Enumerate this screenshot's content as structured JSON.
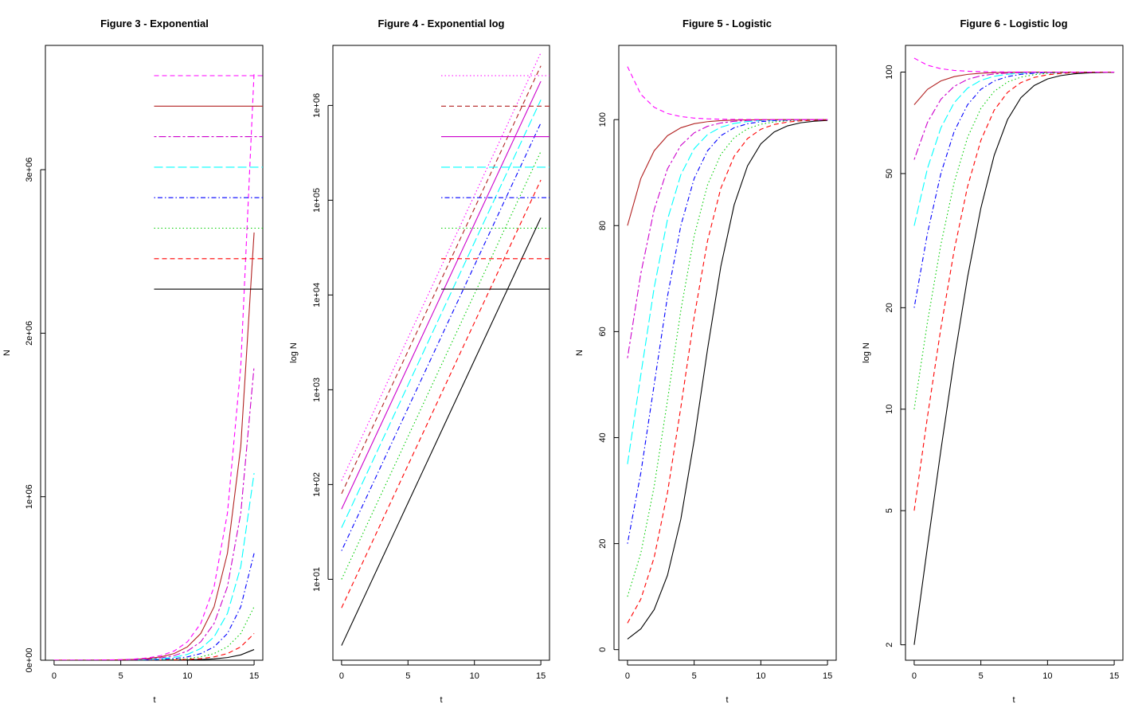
{
  "chart_data": [
    {
      "type": "line",
      "title": "Figure 3 - Exponential",
      "xlabel": "t",
      "ylabel": "N",
      "log_y": false,
      "xlim": [
        0,
        15
      ],
      "ylim": [
        0,
        3760000
      ],
      "xticks": [
        0,
        5,
        10,
        15
      ],
      "xtick_labels": [
        "0",
        "5",
        "10",
        "15"
      ],
      "yticks": [
        0,
        1000000,
        2000000,
        3000000
      ],
      "ytick_labels": [
        "0e+00",
        "1e+06",
        "2e+06",
        "3e+06"
      ],
      "legend": "top-right",
      "legend_x_from": 7.5,
      "series": [
        {
          "r": 0.693,
          "n0": 2,
          "color": "#000000",
          "lty": "solid"
        },
        {
          "r": 0.693,
          "n0": 5,
          "color": "#ff0000",
          "lty": "dashed"
        },
        {
          "r": 0.693,
          "n0": 10,
          "color": "#00cd00",
          "lty": "dotted"
        },
        {
          "r": 0.693,
          "n0": 20,
          "color": "#0000ff",
          "lty": "dotdash"
        },
        {
          "r": 0.693,
          "n0": 35,
          "color": "#00ffff",
          "lty": "longdash"
        },
        {
          "r": 0.693,
          "n0": 55,
          "color": "#cc00cc",
          "lty": "twodash"
        },
        {
          "r": 0.693,
          "n0": 80,
          "color": "#b22222",
          "lty": "solid"
        },
        {
          "r": 0.693,
          "n0": 110,
          "color": "#ff00ff",
          "lty": "dashed"
        }
      ]
    },
    {
      "type": "line",
      "title": "Figure 4 - Exponential log",
      "xlabel": "t",
      "ylabel": "log N",
      "log_y": true,
      "xlim": [
        0,
        15
      ],
      "ylim": [
        1.4,
        4300000
      ],
      "xticks": [
        0,
        5,
        10,
        15
      ],
      "xtick_labels": [
        "0",
        "5",
        "10",
        "15"
      ],
      "yticks": [
        10,
        100,
        1000,
        10000,
        100000,
        1000000
      ],
      "ytick_labels": [
        "1e+01",
        "1e+02",
        "1e+03",
        "1e+04",
        "1e+05",
        "1e+06"
      ],
      "legend": "top-right",
      "legend_x_from": 7.5,
      "series": [
        {
          "r": 0.693,
          "n0": 2,
          "color": "#000000",
          "lty": "solid"
        },
        {
          "r": 0.693,
          "n0": 5,
          "color": "#ff0000",
          "lty": "dashed"
        },
        {
          "r": 0.693,
          "n0": 10,
          "color": "#00cd00",
          "lty": "dotted"
        },
        {
          "r": 0.693,
          "n0": 20,
          "color": "#0000ff",
          "lty": "dotdash"
        },
        {
          "r": 0.693,
          "n0": 35,
          "color": "#00ffff",
          "lty": "longdash"
        },
        {
          "r": 0.693,
          "n0": 55,
          "color": "#cc00cc",
          "lty": "solid"
        },
        {
          "r": 0.693,
          "n0": 80,
          "color": "#b22222",
          "lty": "dashed"
        },
        {
          "r": 0.693,
          "n0": 110,
          "color": "#ff00ff",
          "lty": "dotted"
        }
      ]
    },
    {
      "type": "line",
      "title": "Figure 5 - Logistic",
      "xlabel": "t",
      "ylabel": "N",
      "log_y": false,
      "xlim": [
        0,
        15
      ],
      "ylim": [
        -2,
        114
      ],
      "xticks": [
        0,
        5,
        10,
        15
      ],
      "xtick_labels": [
        "0",
        "5",
        "10",
        "15"
      ],
      "yticks": [
        0,
        20,
        40,
        60,
        80,
        100
      ],
      "ytick_labels": [
        "0",
        "20",
        "40",
        "60",
        "80",
        "100"
      ],
      "K": 100,
      "series": [
        {
          "r": 0.693,
          "n0": 2,
          "color": "#000000",
          "lty": "solid"
        },
        {
          "r": 0.693,
          "n0": 5,
          "color": "#ff0000",
          "lty": "dashed"
        },
        {
          "r": 0.693,
          "n0": 10,
          "color": "#00cd00",
          "lty": "dotted"
        },
        {
          "r": 0.693,
          "n0": 20,
          "color": "#0000ff",
          "lty": "dotdash"
        },
        {
          "r": 0.693,
          "n0": 35,
          "color": "#00ffff",
          "lty": "longdash"
        },
        {
          "r": 0.693,
          "n0": 55,
          "color": "#cc00cc",
          "lty": "twodash"
        },
        {
          "r": 0.693,
          "n0": 80,
          "color": "#b22222",
          "lty": "solid"
        },
        {
          "r": 0.693,
          "n0": 110,
          "color": "#ff00ff",
          "lty": "dashed"
        }
      ]
    },
    {
      "type": "line",
      "title": "Figure 6 - Logistic log",
      "xlabel": "t",
      "ylabel": "log N",
      "log_y": true,
      "xlim": [
        0,
        15
      ],
      "ylim": [
        1.8,
        120
      ],
      "xticks": [
        0,
        5,
        10,
        15
      ],
      "xtick_labels": [
        "0",
        "5",
        "10",
        "15"
      ],
      "yticks": [
        2,
        5,
        10,
        20,
        50,
        100
      ],
      "ytick_labels": [
        "2",
        "5",
        "10",
        "20",
        "50",
        "100"
      ],
      "K": 100,
      "series": [
        {
          "r": 0.693,
          "n0": 2,
          "color": "#000000",
          "lty": "solid"
        },
        {
          "r": 0.693,
          "n0": 5,
          "color": "#ff0000",
          "lty": "dashed"
        },
        {
          "r": 0.693,
          "n0": 10,
          "color": "#00cd00",
          "lty": "dotted"
        },
        {
          "r": 0.693,
          "n0": 20,
          "color": "#0000ff",
          "lty": "dotdash"
        },
        {
          "r": 0.693,
          "n0": 35,
          "color": "#00ffff",
          "lty": "longdash"
        },
        {
          "r": 0.693,
          "n0": 55,
          "color": "#cc00cc",
          "lty": "twodash"
        },
        {
          "r": 0.693,
          "n0": 80,
          "color": "#b22222",
          "lty": "solid"
        },
        {
          "r": 0.693,
          "n0": 110,
          "color": "#ff00ff",
          "lty": "dashed"
        }
      ]
    }
  ]
}
